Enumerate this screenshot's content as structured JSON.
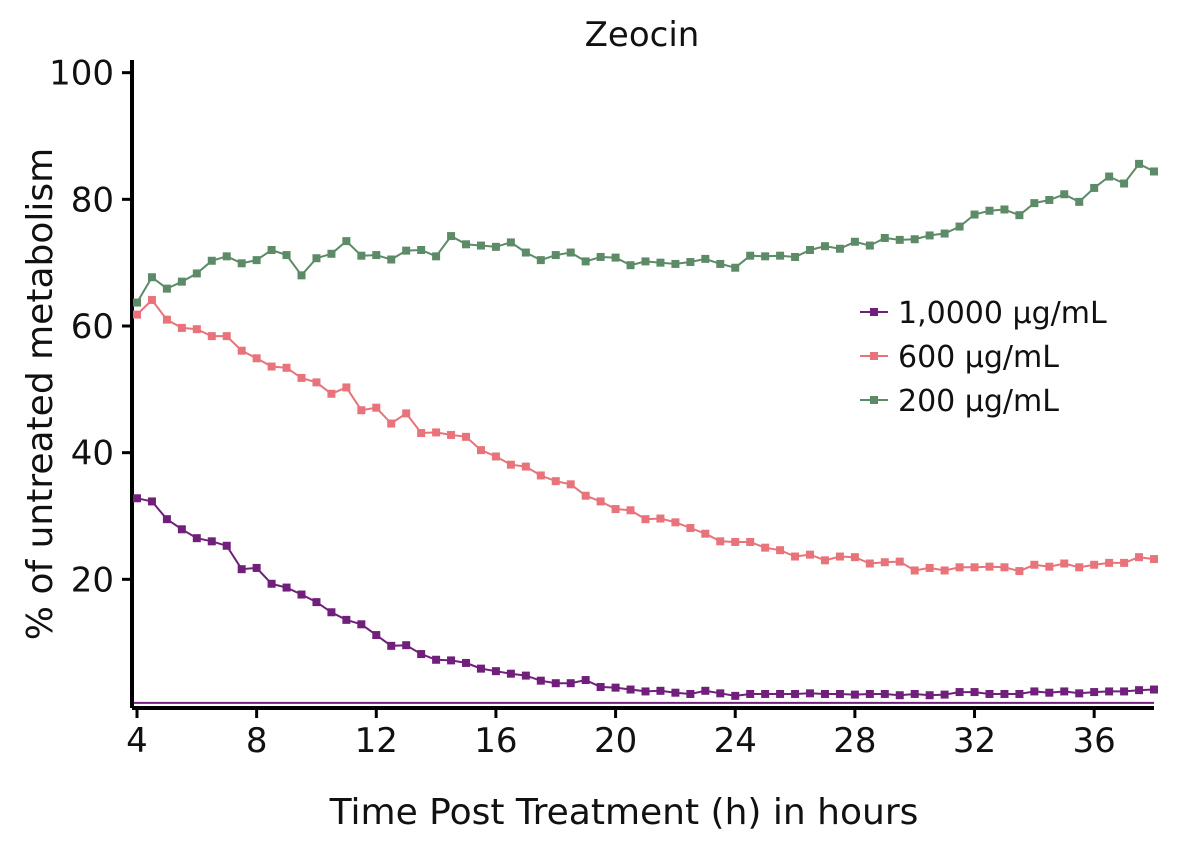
{
  "chart_data": {
    "type": "line",
    "title": "Zeocin",
    "xlabel": "Time Post Treatment (h) in hours",
    "ylabel": "% of untreated metabolism",
    "xlim": [
      3.9,
      38
    ],
    "ylim": [
      0,
      102
    ],
    "xticks": [
      4,
      8,
      12,
      16,
      20,
      24,
      28,
      32,
      36
    ],
    "yticks": [
      20,
      40,
      60,
      80,
      100
    ],
    "grid": false,
    "legend_position": "right",
    "baseline": {
      "y": 0.5,
      "color": "#70207a"
    },
    "x": [
      4,
      4.5,
      5,
      5.5,
      6,
      6.5,
      7,
      7.5,
      8,
      8.5,
      9,
      9.5,
      10,
      10.5,
      11,
      11.5,
      12,
      12.5,
      13,
      13.5,
      14,
      14.5,
      15,
      15.5,
      16,
      16.5,
      17,
      17.5,
      18,
      18.5,
      19,
      19.5,
      20,
      20.5,
      21,
      21.5,
      22,
      22.5,
      23,
      23.5,
      24,
      24.5,
      25,
      25.5,
      26,
      26.5,
      27,
      27.5,
      28,
      28.5,
      29,
      29.5,
      30,
      30.5,
      31,
      31.5,
      32,
      32.5,
      33,
      33.5,
      34,
      34.5,
      35,
      35.5,
      36,
      36.5,
      37,
      37.5,
      38
    ],
    "series": [
      {
        "name": "1,0000 µg/mL",
        "color": "#70207a",
        "values": [
          32.8,
          32.3,
          29.5,
          27.9,
          26.5,
          26.0,
          25.3,
          21.6,
          21.8,
          19.3,
          18.7,
          17.6,
          16.4,
          14.8,
          13.6,
          12.9,
          11.2,
          9.5,
          9.6,
          8.2,
          7.3,
          7.2,
          6.8,
          5.9,
          5.5,
          5.1,
          4.8,
          4.0,
          3.6,
          3.6,
          4.1,
          3.0,
          2.9,
          2.6,
          2.3,
          2.4,
          2.1,
          1.9,
          2.4,
          2.0,
          1.6,
          1.9,
          1.9,
          1.9,
          1.9,
          2.0,
          1.9,
          1.9,
          1.8,
          1.9,
          1.9,
          1.7,
          1.9,
          1.7,
          1.8,
          2.2,
          2.2,
          1.9,
          1.9,
          1.9,
          2.3,
          2.1,
          2.3,
          2.0,
          2.2,
          2.3,
          2.3,
          2.5,
          2.6
        ]
      },
      {
        "name": "600 µg/mL",
        "color": "#e8737a",
        "values": [
          61.8,
          64.1,
          61.0,
          59.7,
          59.5,
          58.4,
          58.4,
          56.1,
          54.9,
          53.6,
          53.4,
          51.8,
          51.1,
          49.3,
          50.3,
          46.7,
          47.1,
          44.6,
          46.2,
          43.1,
          43.2,
          42.8,
          42.5,
          40.4,
          39.4,
          38.1,
          37.8,
          36.4,
          35.5,
          35.0,
          33.2,
          32.3,
          31.1,
          30.9,
          29.5,
          29.6,
          29.0,
          28.1,
          27.2,
          26.0,
          25.9,
          25.9,
          25.0,
          24.6,
          23.6,
          23.9,
          23.0,
          23.6,
          23.5,
          22.5,
          22.7,
          22.8,
          21.4,
          21.8,
          21.4,
          21.9,
          21.9,
          22.0,
          21.9,
          21.3,
          22.3,
          22.0,
          22.5,
          21.9,
          22.3,
          22.6,
          22.6,
          23.5,
          23.2
        ]
      },
      {
        "name": "200 µg/mL",
        "color": "#5d8b68",
        "values": [
          63.7,
          67.7,
          65.9,
          67.0,
          68.3,
          70.3,
          71.0,
          69.9,
          70.4,
          72.0,
          71.2,
          68.0,
          70.7,
          71.4,
          73.4,
          71.1,
          71.2,
          70.5,
          71.9,
          72.0,
          71.0,
          74.2,
          72.9,
          72.7,
          72.5,
          73.2,
          71.6,
          70.4,
          71.2,
          71.6,
          70.2,
          70.9,
          70.8,
          69.6,
          70.2,
          70.0,
          69.8,
          70.1,
          70.6,
          69.8,
          69.2,
          71.1,
          71.0,
          71.1,
          70.9,
          72.0,
          72.6,
          72.2,
          73.3,
          72.7,
          73.9,
          73.6,
          73.7,
          74.3,
          74.6,
          75.7,
          77.6,
          78.2,
          78.4,
          77.5,
          79.4,
          79.9,
          80.8,
          79.6,
          81.8,
          83.6,
          82.5,
          85.6,
          84.4
        ]
      }
    ]
  }
}
